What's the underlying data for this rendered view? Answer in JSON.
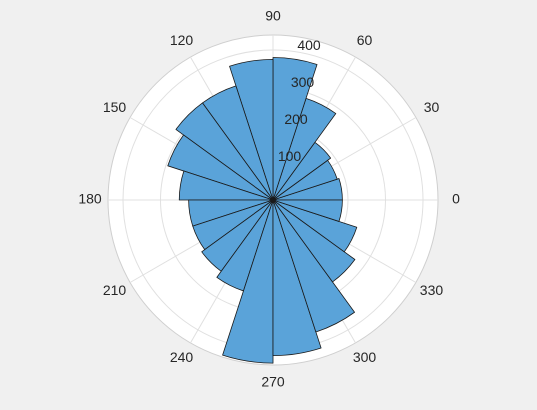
{
  "chart_data": {
    "type": "polar_histogram",
    "title": "",
    "theta_unit": "degrees",
    "theta_ticks": [
      0,
      30,
      60,
      90,
      120,
      150,
      180,
      210,
      240,
      270,
      300,
      330
    ],
    "theta_tick_labels": [
      "0",
      "30",
      "60",
      "90",
      "120",
      "150",
      "180",
      "210",
      "240",
      "270",
      "300",
      "330"
    ],
    "r_ticks": [
      100,
      200,
      300,
      400
    ],
    "r_tick_labels": [
      "100",
      "200",
      "300",
      "400"
    ],
    "r_tick_label_angle": 80,
    "rlim": [
      0,
      440
    ],
    "grid": true,
    "bin_width_deg": 18,
    "bins": [
      {
        "start": 0,
        "end": 18,
        "value": 185
      },
      {
        "start": 18,
        "end": 36,
        "value": 180
      },
      {
        "start": 36,
        "end": 54,
        "value": 190
      },
      {
        "start": 54,
        "end": 72,
        "value": 285
      },
      {
        "start": 72,
        "end": 90,
        "value": 380
      },
      {
        "start": 90,
        "end": 108,
        "value": 375
      },
      {
        "start": 108,
        "end": 126,
        "value": 320
      },
      {
        "start": 126,
        "end": 144,
        "value": 320
      },
      {
        "start": 144,
        "end": 162,
        "value": 295
      },
      {
        "start": 162,
        "end": 180,
        "value": 250
      },
      {
        "start": 180,
        "end": 198,
        "value": 225
      },
      {
        "start": 198,
        "end": 216,
        "value": 225
      },
      {
        "start": 216,
        "end": 234,
        "value": 235
      },
      {
        "start": 234,
        "end": 252,
        "value": 255
      },
      {
        "start": 252,
        "end": 270,
        "value": 435
      },
      {
        "start": 270,
        "end": 288,
        "value": 415
      },
      {
        "start": 288,
        "end": 306,
        "value": 370
      },
      {
        "start": 306,
        "end": 324,
        "value": 270
      },
      {
        "start": 324,
        "end": 342,
        "value": 235
      },
      {
        "start": 342,
        "end": 360,
        "value": 185
      }
    ],
    "colors": {
      "bar_fill": "#5aa3d9",
      "bar_edge": "#1a1a1a",
      "axes_bg": "#ffffff",
      "grid": "#e0e0e0",
      "figure_bg": "#f0f0f0",
      "text": "#262626"
    }
  }
}
